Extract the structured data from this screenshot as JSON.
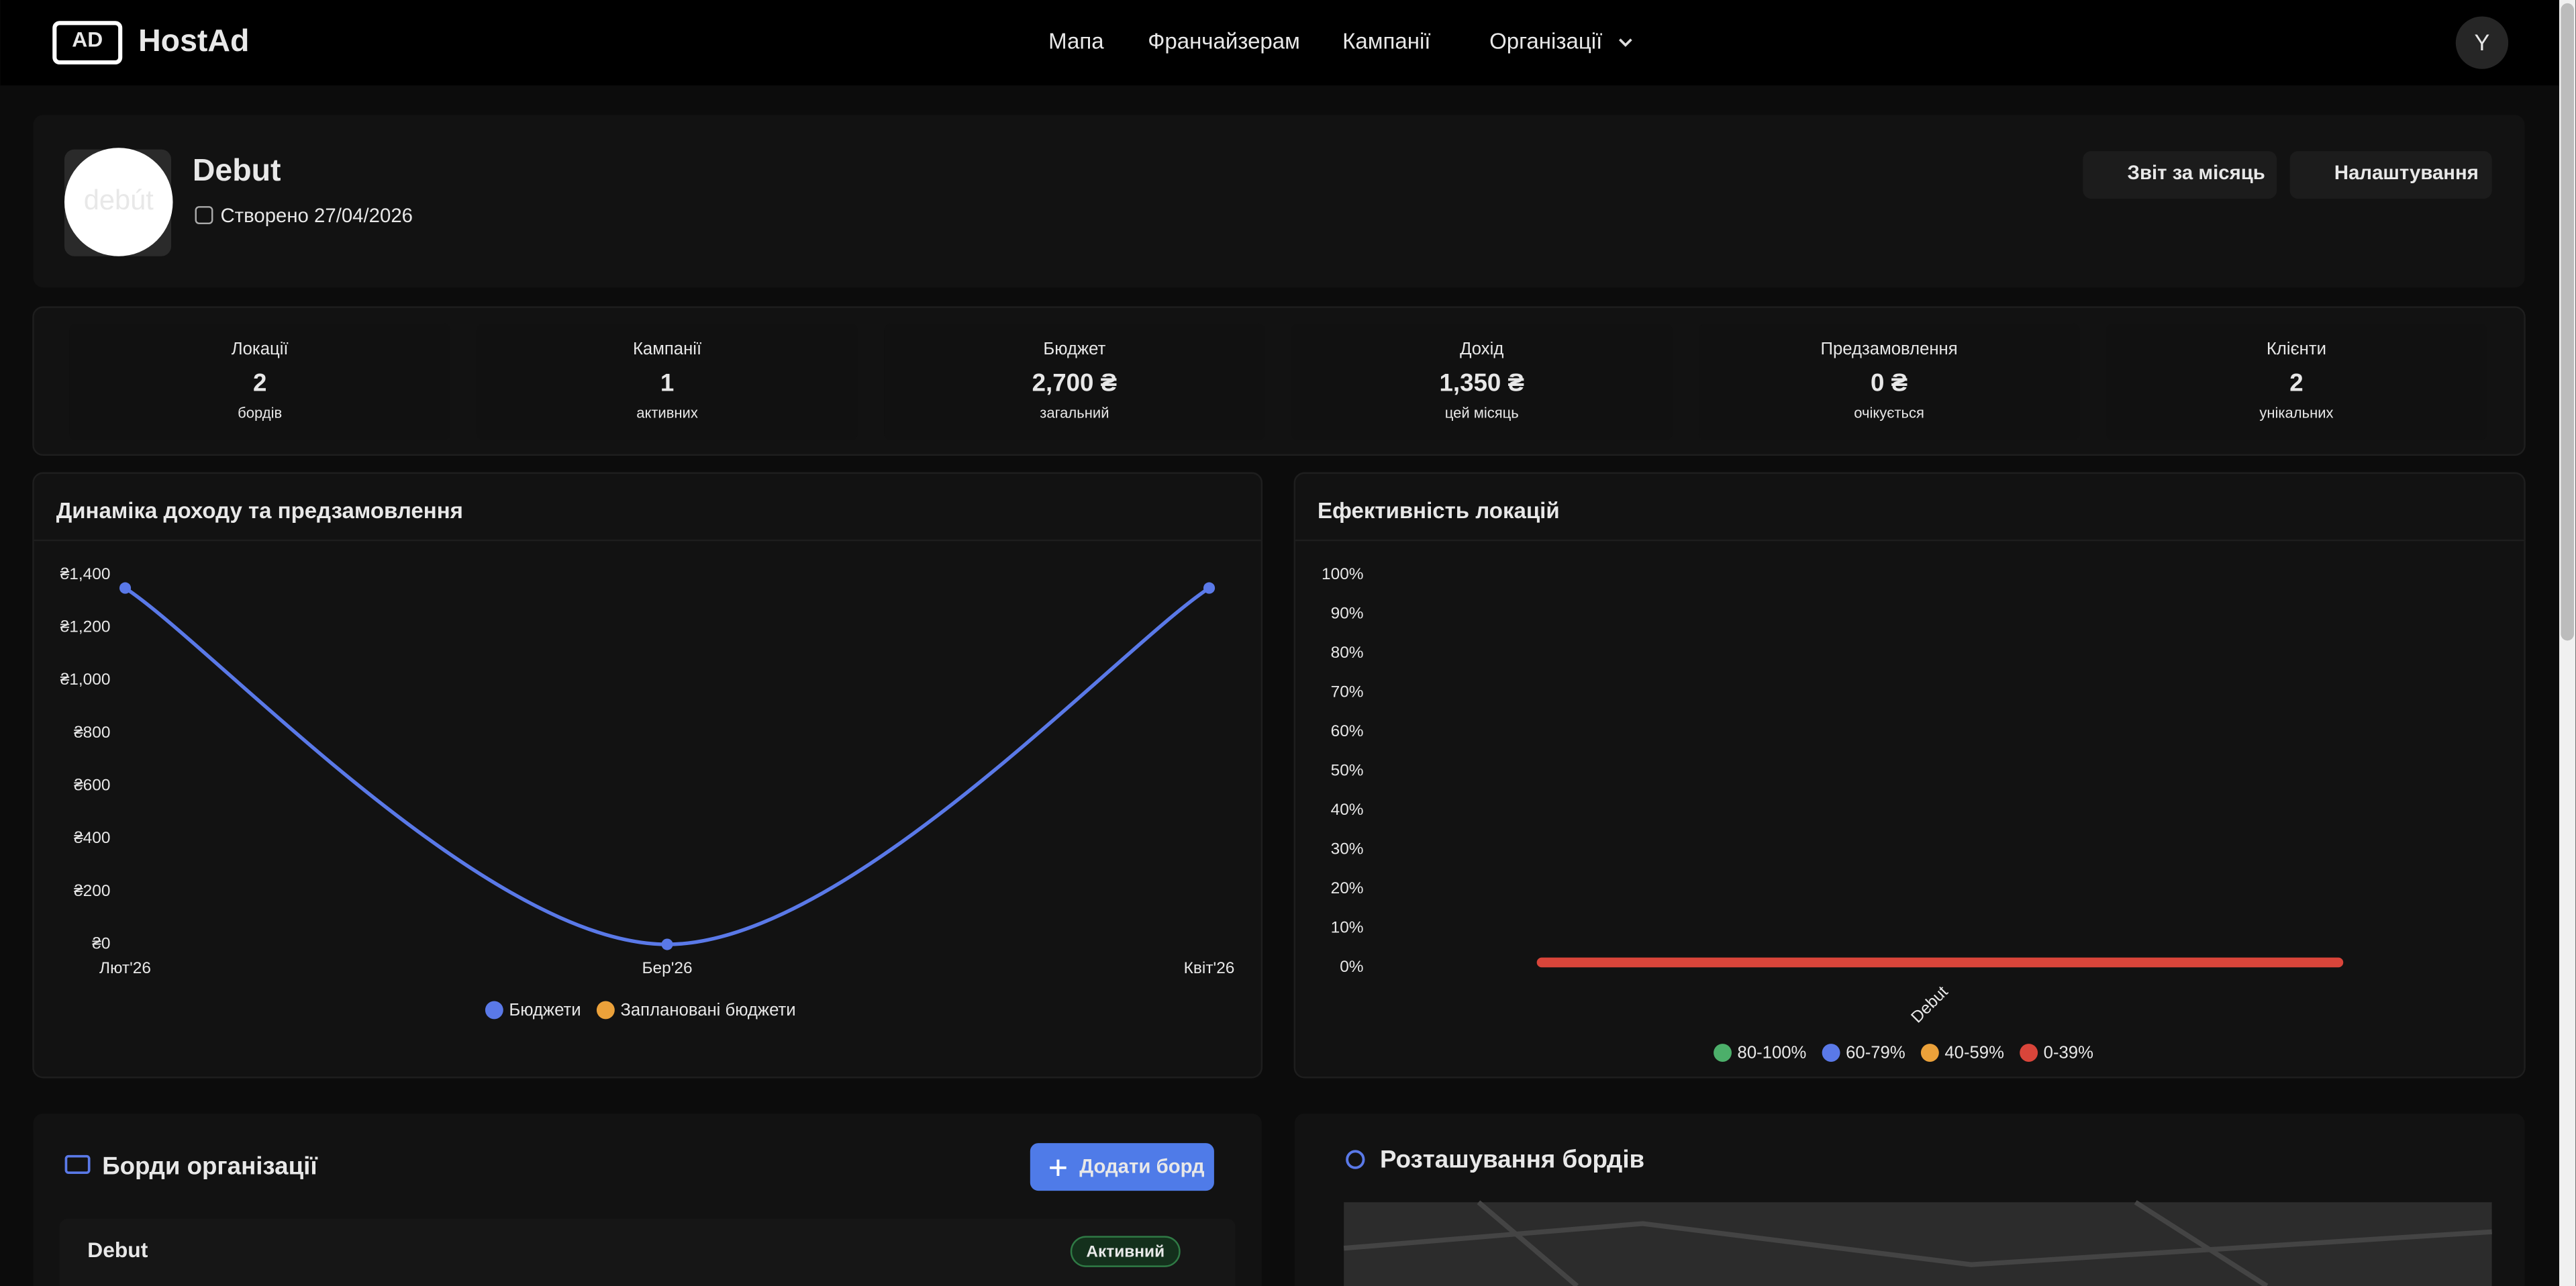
{
  "nav": {
    "logo_mark": "AD",
    "brand": "HostAd",
    "links": [
      "Мапа",
      "Франчайзерам",
      "Кампанії",
      "Організації"
    ],
    "avatar": "Y"
  },
  "header": {
    "logo_text": "debút",
    "title": "Debut",
    "created": "Створено 27/04/2026",
    "buttons": [
      "Звіт за місяць",
      "Налаштування"
    ]
  },
  "stats": [
    {
      "label": "Локації",
      "value": "2",
      "sub": "бордів"
    },
    {
      "label": "Кампанії",
      "value": "1",
      "sub": "активних"
    },
    {
      "label": "Бюджет",
      "value": "2,700 ₴",
      "sub": "загальний"
    },
    {
      "label": "Дохід",
      "value": "1,350 ₴",
      "sub": "цей місяць"
    },
    {
      "label": "Предзамовлення",
      "value": "0 ₴",
      "sub": "очікується"
    },
    {
      "label": "Клієнти",
      "value": "2",
      "sub": "унікальних"
    }
  ],
  "chart_data": [
    {
      "type": "line",
      "title": "Динаміка доходу та предзамовлення",
      "categories": [
        "Лют'26",
        "Бер'26",
        "Квіт'26"
      ],
      "series": [
        {
          "name": "Бюджети",
          "color": "#5a79e8",
          "values": [
            1350,
            0,
            1350
          ]
        },
        {
          "name": "Заплановані бюджети",
          "color": "#eba13a",
          "values": [
            null,
            null,
            null
          ]
        }
      ],
      "ylim": [
        0,
        1400
      ],
      "yticks": [
        {
          "value": 0,
          "label": "₴0"
        },
        {
          "value": 200,
          "label": "₴200"
        },
        {
          "value": 400,
          "label": "₴400"
        },
        {
          "value": 600,
          "label": "₴600"
        },
        {
          "value": 800,
          "label": "₴800"
        },
        {
          "value": 1000,
          "label": "₴1,000"
        },
        {
          "value": 1200,
          "label": "₴1,200"
        },
        {
          "value": 1400,
          "label": "₴1,400"
        }
      ],
      "grid": false
    },
    {
      "type": "bar",
      "title": "Ефективність локацій",
      "categories": [
        "Debut"
      ],
      "values": [
        2.5
      ],
      "color": "#d9453a",
      "ylim": [
        0,
        100
      ],
      "yticks": [
        {
          "value": 0,
          "label": "0%"
        },
        {
          "value": 10,
          "label": "10%"
        },
        {
          "value": 20,
          "label": "20%"
        },
        {
          "value": 30,
          "label": "30%"
        },
        {
          "value": 40,
          "label": "40%"
        },
        {
          "value": 50,
          "label": "50%"
        },
        {
          "value": 60,
          "label": "60%"
        },
        {
          "value": 70,
          "label": "70%"
        },
        {
          "value": 80,
          "label": "80%"
        },
        {
          "value": 90,
          "label": "90%"
        },
        {
          "value": 100,
          "label": "100%"
        }
      ],
      "grid": false,
      "legend": [
        {
          "name": "80-100%",
          "color": "#4caf6a"
        },
        {
          "name": "60-79%",
          "color": "#5a79e8"
        },
        {
          "name": "40-59%",
          "color": "#eba13a"
        },
        {
          "name": "0-39%",
          "color": "#d9453a"
        }
      ]
    }
  ],
  "boards": {
    "title": "Борди організації",
    "add_button": "Додати борд",
    "rows": [
      {
        "name": "Debut",
        "status": "Активний"
      }
    ]
  },
  "map": {
    "title": "Розташування бордів"
  }
}
